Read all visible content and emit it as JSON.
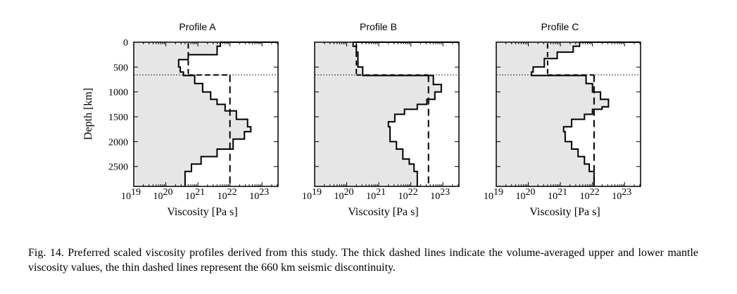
{
  "figure": {
    "ylabel": "Depth [km]",
    "xlabel": "Viscosity [Pa s]",
    "y_ticks": [
      "0",
      "500",
      "1000",
      "1500",
      "2000",
      "2500"
    ],
    "x_tick_base": "10",
    "x_tick_exponents": [
      "19",
      "20",
      "21",
      "22",
      "23"
    ]
  },
  "caption": "Fig. 14. Preferred scaled viscosity profiles derived from this study. The thick dashed lines indicate the volume-averaged upper and lower mantle viscosity values, the thin dashed lines represent the 660 km seismic discontinuity.",
  "chart_data": [
    {
      "type": "line",
      "title": "Profile A",
      "xlabel": "Viscosity [Pa s]",
      "ylabel": "Depth [km]",
      "x_scale": "log",
      "xlim": [
        19,
        23.5
      ],
      "ylim": [
        2900,
        0
      ],
      "discontinuity_depth_km": 660,
      "profile": [
        [
          80,
          21.7
        ],
        [
          250,
          21.6
        ],
        [
          350,
          20.7
        ],
        [
          500,
          20.4
        ],
        [
          600,
          20.45
        ],
        [
          670,
          20.55
        ],
        [
          830,
          20.9
        ],
        [
          1000,
          21.15
        ],
        [
          1150,
          21.4
        ],
        [
          1250,
          21.6
        ],
        [
          1380,
          21.85
        ],
        [
          1550,
          22.2
        ],
        [
          1700,
          22.55
        ],
        [
          1800,
          22.65
        ],
        [
          1950,
          22.45
        ],
        [
          2150,
          22.1
        ],
        [
          2300,
          21.6
        ],
        [
          2450,
          21.1
        ],
        [
          2600,
          20.8
        ],
        [
          2700,
          20.6
        ],
        [
          2900,
          20.6
        ]
      ],
      "upper_mantle_average_log": 20.7,
      "lower_mantle_average_log": 22.0
    },
    {
      "type": "line",
      "title": "Profile B",
      "xlabel": "Viscosity [Pa s]",
      "ylabel": "Depth [km]",
      "x_scale": "log",
      "xlim": [
        19,
        23.5
      ],
      "ylim": [
        2900,
        0
      ],
      "discontinuity_depth_km": 660,
      "profile": [
        [
          80,
          20.2
        ],
        [
          200,
          20.3
        ],
        [
          500,
          20.35
        ],
        [
          670,
          20.5
        ],
        [
          850,
          22.7
        ],
        [
          1000,
          22.95
        ],
        [
          1150,
          22.75
        ],
        [
          1250,
          22.5
        ],
        [
          1350,
          22.2
        ],
        [
          1450,
          21.8
        ],
        [
          1600,
          21.5
        ],
        [
          1700,
          21.3
        ],
        [
          2000,
          21.35
        ],
        [
          2150,
          21.55
        ],
        [
          2350,
          21.75
        ],
        [
          2450,
          21.95
        ],
        [
          2600,
          22.1
        ],
        [
          2900,
          22.2
        ]
      ],
      "upper_mantle_average_log": 20.3,
      "lower_mantle_average_log": 22.55
    },
    {
      "type": "line",
      "title": "Profile C",
      "xlabel": "Viscosity [Pa s]",
      "ylabel": "Depth [km]",
      "x_scale": "log",
      "xlim": [
        19,
        23.5
      ],
      "ylim": [
        2900,
        0
      ],
      "discontinuity_depth_km": 660,
      "profile": [
        [
          80,
          21.6
        ],
        [
          200,
          21.4
        ],
        [
          330,
          20.9
        ],
        [
          500,
          20.5
        ],
        [
          600,
          20.15
        ],
        [
          670,
          20.1
        ],
        [
          830,
          21.8
        ],
        [
          1000,
          22.0
        ],
        [
          1150,
          22.25
        ],
        [
          1300,
          22.5
        ],
        [
          1350,
          22.3
        ],
        [
          1450,
          22.0
        ],
        [
          1550,
          21.75
        ],
        [
          1700,
          21.35
        ],
        [
          1800,
          21.1
        ],
        [
          2000,
          21.15
        ],
        [
          2150,
          21.35
        ],
        [
          2300,
          21.55
        ],
        [
          2450,
          21.75
        ],
        [
          2600,
          21.9
        ],
        [
          2900,
          22.05
        ]
      ],
      "upper_mantle_average_log": 20.6,
      "lower_mantle_average_log": 22.05
    }
  ]
}
